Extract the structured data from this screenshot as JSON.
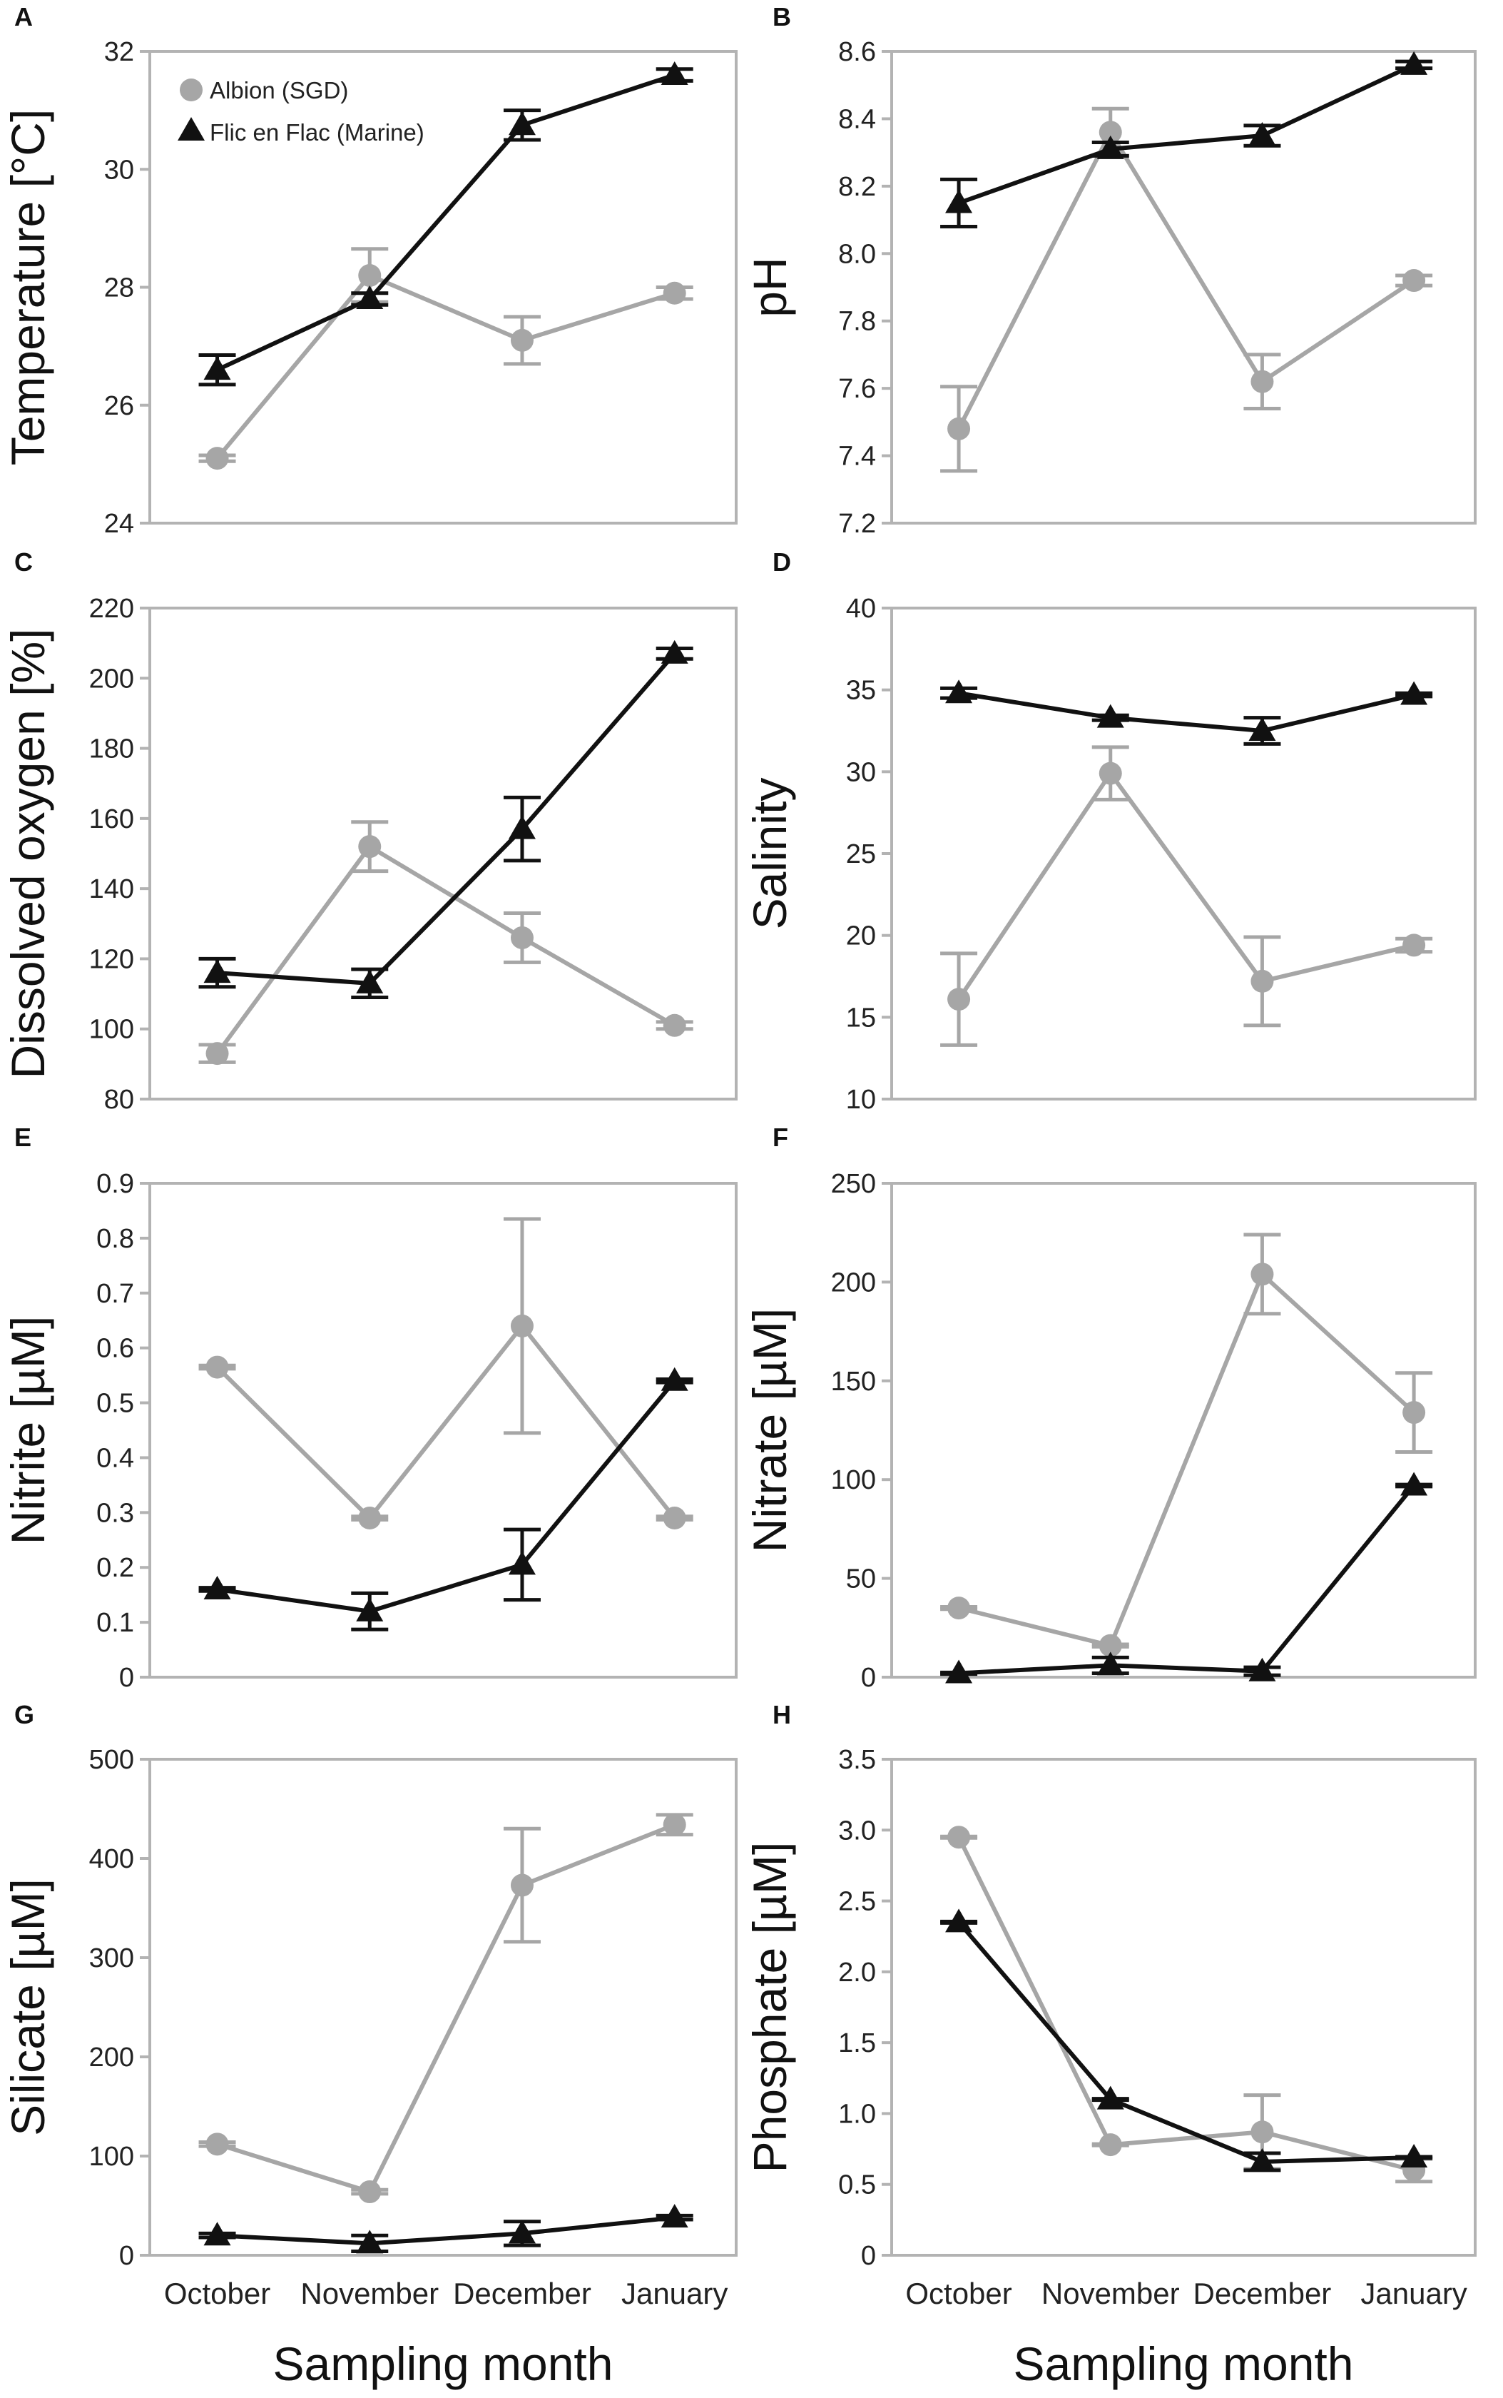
{
  "colors": {
    "albion": "#a6a6a6",
    "flic": "#111111",
    "frame": "#b3b3b3"
  },
  "legend": {
    "albion": "Albion (SGD)",
    "flic": "Flic en Flac (Marine)"
  },
  "x_axis": {
    "categories": [
      "October",
      "November",
      "December",
      "January"
    ],
    "label": "Sampling month"
  },
  "chart_data": [
    {
      "type": "line",
      "panel": "A",
      "ylabel": "Temperature [°C]",
      "ylim": [
        24,
        32
      ],
      "yticks": [
        24,
        26,
        28,
        30,
        32
      ],
      "tick_labels": [
        "24",
        "26",
        "28",
        "30",
        "32"
      ],
      "categories": [
        "October",
        "November",
        "December",
        "January"
      ],
      "series": [
        {
          "name": "Albion (SGD)",
          "values": [
            25.1,
            28.2,
            27.1,
            27.9
          ],
          "errors": [
            0.05,
            0.45,
            0.4,
            0.1
          ]
        },
        {
          "name": "Flic en Flac (Marine)",
          "values": [
            26.6,
            27.8,
            30.75,
            31.6
          ],
          "errors": [
            0.25,
            0.1,
            0.25,
            0.1
          ]
        }
      ]
    },
    {
      "type": "line",
      "panel": "B",
      "ylabel": "pH",
      "ylim": [
        7.2,
        8.6
      ],
      "yticks": [
        7.2,
        7.4,
        7.6,
        7.8,
        8.0,
        8.2,
        8.4,
        8.6
      ],
      "tick_labels": [
        "7.2",
        "7.4",
        "7.6",
        "7.8",
        "8.0",
        "8.2",
        "8.4",
        "8.6"
      ],
      "categories": [
        "October",
        "November",
        "December",
        "January"
      ],
      "series": [
        {
          "name": "Albion (SGD)",
          "values": [
            7.48,
            8.36,
            7.62,
            7.92
          ],
          "errors": [
            0.125,
            0.07,
            0.08,
            0.015
          ]
        },
        {
          "name": "Flic en Flac (Marine)",
          "values": [
            8.15,
            8.31,
            8.35,
            8.56
          ],
          "errors": [
            0.07,
            0.02,
            0.03,
            0.01
          ]
        }
      ]
    },
    {
      "type": "line",
      "panel": "C",
      "ylabel": "Dissolved oxygen [%]",
      "ylim": [
        80,
        220
      ],
      "yticks": [
        80,
        100,
        120,
        140,
        160,
        180,
        200,
        220
      ],
      "tick_labels": [
        "80",
        "100",
        "120",
        "140",
        "160",
        "180",
        "200",
        "220"
      ],
      "categories": [
        "October",
        "November",
        "December",
        "January"
      ],
      "series": [
        {
          "name": "Albion (SGD)",
          "values": [
            93,
            152,
            126,
            101
          ],
          "errors": [
            2.5,
            7,
            7,
            1
          ]
        },
        {
          "name": "Flic en Flac (Marine)",
          "values": [
            116,
            113,
            157,
            207
          ],
          "errors": [
            4,
            4,
            9,
            1.5
          ]
        }
      ]
    },
    {
      "type": "line",
      "panel": "D",
      "ylabel": "Salinity",
      "ylim": [
        10,
        40
      ],
      "yticks": [
        10,
        15,
        20,
        25,
        30,
        35,
        40
      ],
      "tick_labels": [
        "10",
        "15",
        "20",
        "25",
        "30",
        "35",
        "40"
      ],
      "categories": [
        "October",
        "November",
        "December",
        "January"
      ],
      "series": [
        {
          "name": "Albion (SGD)",
          "values": [
            16.1,
            29.9,
            17.2,
            19.4
          ],
          "errors": [
            2.8,
            1.6,
            2.7,
            0.4
          ]
        },
        {
          "name": "Flic en Flac (Marine)",
          "values": [
            34.8,
            33.3,
            32.5,
            34.7
          ],
          "errors": [
            0.3,
            0.15,
            0.8,
            0.1
          ]
        }
      ]
    },
    {
      "type": "line",
      "panel": "E",
      "ylabel": "Nitrite [µM]",
      "ylim": [
        0,
        0.9
      ],
      "yticks": [
        0,
        0.1,
        0.2,
        0.3,
        0.4,
        0.5,
        0.6,
        0.7,
        0.8,
        0.9
      ],
      "tick_labels": [
        "0",
        "0.1",
        "0.2",
        "0.3",
        "0.4",
        "0.5",
        "0.6",
        "0.7",
        "0.8",
        "0.9"
      ],
      "categories": [
        "October",
        "November",
        "December",
        "January"
      ],
      "series": [
        {
          "name": "Albion (SGD)",
          "values": [
            0.565,
            0.29,
            0.64,
            0.29
          ],
          "errors": [
            0.003,
            0.003,
            0.195,
            0.003
          ]
        },
        {
          "name": "Flic en Flac (Marine)",
          "values": [
            0.16,
            0.12,
            0.205,
            0.54
          ],
          "errors": [
            0.003,
            0.033,
            0.064,
            0.003
          ]
        }
      ]
    },
    {
      "type": "line",
      "panel": "F",
      "ylabel": "Nitrate [µM]",
      "ylim": [
        0,
        250
      ],
      "yticks": [
        0,
        50,
        100,
        150,
        200,
        250
      ],
      "tick_labels": [
        "0",
        "50",
        "100",
        "150",
        "200",
        "250"
      ],
      "categories": [
        "October",
        "November",
        "December",
        "January"
      ],
      "series": [
        {
          "name": "Albion (SGD)",
          "values": [
            35,
            16,
            204,
            134
          ],
          "errors": [
            0.6,
            0.6,
            20,
            20
          ]
        },
        {
          "name": "Flic en Flac (Marine)",
          "values": [
            2,
            6,
            3,
            97
          ],
          "errors": [
            0.4,
            4,
            2,
            0.5
          ]
        }
      ]
    },
    {
      "type": "line",
      "panel": "G",
      "ylabel": "Silicate [µM]",
      "ylim": [
        0,
        500
      ],
      "yticks": [
        0,
        100,
        200,
        300,
        400,
        500
      ],
      "tick_labels": [
        "0",
        "100",
        "200",
        "300",
        "400",
        "500"
      ],
      "categories": [
        "October",
        "November",
        "December",
        "January"
      ],
      "series": [
        {
          "name": "Albion (SGD)",
          "values": [
            112,
            64,
            373,
            434
          ],
          "errors": [
            2,
            2,
            57,
            10
          ]
        },
        {
          "name": "Flic en Flac (Marine)",
          "values": [
            20,
            12,
            22,
            38
          ],
          "errors": [
            2,
            8,
            12,
            2
          ]
        }
      ]
    },
    {
      "type": "line",
      "panel": "H",
      "ylabel": "Phosphate [µM]",
      "ylim": [
        0,
        3.5
      ],
      "yticks": [
        0,
        0.5,
        1.0,
        1.5,
        2.0,
        2.5,
        3.0,
        3.5
      ],
      "tick_labels": [
        "0",
        "0.5",
        "1.0",
        "1.5",
        "2.0",
        "2.5",
        "3.0",
        "3.5"
      ],
      "categories": [
        "October",
        "November",
        "December",
        "January"
      ],
      "series": [
        {
          "name": "Albion (SGD)",
          "values": [
            2.95,
            0.78,
            0.87,
            0.6
          ],
          "errors": [
            0.005,
            0.005,
            0.26,
            0.08
          ]
        },
        {
          "name": "Flic en Flac (Marine)",
          "values": [
            2.35,
            1.1,
            0.66,
            0.69
          ],
          "errors": [
            0.005,
            0.005,
            0.06,
            0.005
          ]
        }
      ]
    }
  ]
}
